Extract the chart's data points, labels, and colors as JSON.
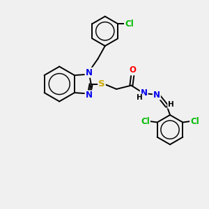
{
  "background_color": "#f0f0f0",
  "atom_colors": {
    "C": "#000000",
    "N": "#0000ee",
    "S": "#ccaa00",
    "O": "#ff0000",
    "Cl": "#00bb00",
    "H": "#000000"
  },
  "bond_color": "#000000",
  "bond_width": 1.4,
  "figsize": [
    3.0,
    3.0
  ],
  "dpi": 100
}
